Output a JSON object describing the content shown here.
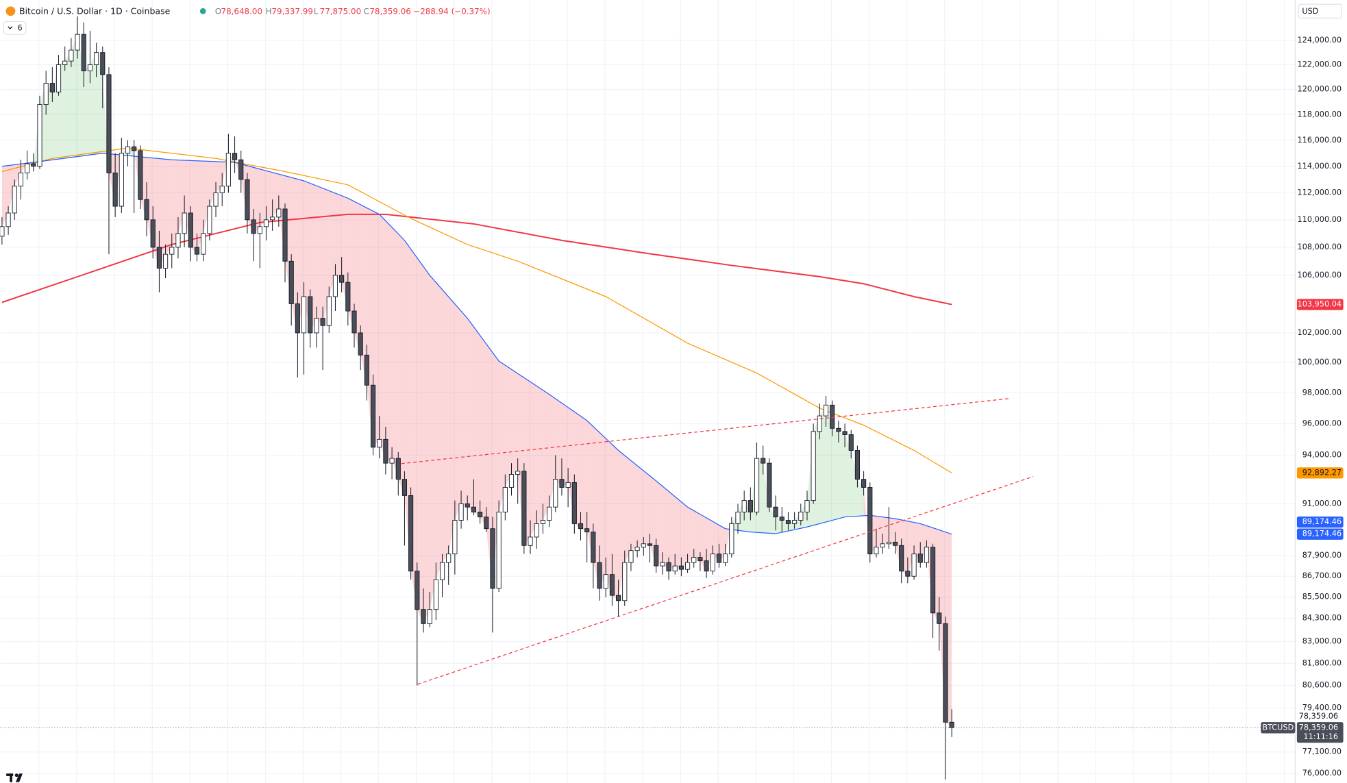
{
  "chart_data": {
    "type": "candlestick",
    "title": "Bitcoin / U.S. Dollar · 1D · Coinbase",
    "ohlc_legend": [
      {
        "key": "O",
        "value": "78,648.00"
      },
      {
        "key": "H",
        "value": "79,337.99"
      },
      {
        "key": "L",
        "value": "77,875.00"
      },
      {
        "key": "C",
        "value": "78,359.06"
      }
    ],
    "change": "−288.94 (−0.37%)",
    "indicators_hidden": 6,
    "currency": "USD",
    "symbol": "BTCUSD",
    "last_price_label": "78,359.06",
    "countdown": "11:11:16",
    "log": true,
    "grid": true,
    "up_color": "#ffffff",
    "down_color": "#4a4e59",
    "xlim": [
      -0.27,
      205.6
    ],
    "ylim": [
      75520,
      127390
    ],
    "yticks": [
      {
        "value": 124000,
        "label": "124,000.00"
      },
      {
        "value": 122000,
        "label": "122,000.00"
      },
      {
        "value": 120000,
        "label": "120,000.00"
      },
      {
        "value": 118000,
        "label": "118,000.00"
      },
      {
        "value": 116000,
        "label": "116,000.00"
      },
      {
        "value": 114000,
        "label": "114,000.00"
      },
      {
        "value": 112000,
        "label": "112,000.00"
      },
      {
        "value": 110000,
        "label": "110,000.00"
      },
      {
        "value": 108000,
        "label": "108,000.00"
      },
      {
        "value": 106000,
        "label": "106,000.00"
      },
      {
        "value": 102000,
        "label": "102,000.00"
      },
      {
        "value": 100000,
        "label": "100,000.00"
      },
      {
        "value": 98000,
        "label": "98,000.00"
      },
      {
        "value": 96000,
        "label": "96,000.00"
      },
      {
        "value": 94000,
        "label": "94,000.00"
      },
      {
        "value": 91000,
        "label": "91,000.00"
      },
      {
        "value": 87900,
        "label": "87,900.00"
      },
      {
        "value": 86700,
        "label": "86,700.00"
      },
      {
        "value": 85500,
        "label": "85,500.00"
      },
      {
        "value": 84300,
        "label": "84,300.00"
      },
      {
        "value": 83000,
        "label": "83,000.00"
      },
      {
        "value": 81800,
        "label": "81,800.00"
      },
      {
        "value": 80600,
        "label": "80,600.00"
      },
      {
        "value": 79400,
        "label": "79,400.00"
      },
      {
        "value": 77100,
        "label": "77,100.00"
      },
      {
        "value": 76000,
        "label": "76,000.00"
      }
    ],
    "candles": [
      [
        108800,
        110200,
        108200,
        109500
      ],
      [
        109500,
        111000,
        108900,
        110500
      ],
      [
        110500,
        113000,
        110000,
        112500
      ],
      [
        112500,
        114500,
        111500,
        113500
      ],
      [
        113500,
        115200,
        113000,
        114200
      ],
      [
        114200,
        115000,
        113600,
        114000
      ],
      [
        114000,
        119500,
        113800,
        118800
      ],
      [
        118800,
        121500,
        118000,
        120500
      ],
      [
        120500,
        121800,
        119000,
        119800
      ],
      [
        119800,
        122800,
        119500,
        122000
      ],
      [
        122000,
        123500,
        121500,
        122300
      ],
      [
        122300,
        124200,
        121800,
        123200
      ],
      [
        123200,
        126000,
        122500,
        124500
      ],
      [
        124500,
        125500,
        120200,
        121500
      ],
      [
        121500,
        124800,
        120500,
        122000
      ],
      [
        122000,
        123800,
        121000,
        123000
      ],
      [
        123000,
        123500,
        118500,
        121200
      ],
      [
        121200,
        121800,
        107500,
        113500
      ],
      [
        113500,
        115000,
        110200,
        111000
      ],
      [
        111000,
        116200,
        110500,
        115000
      ],
      [
        115000,
        116000,
        114000,
        115500
      ],
      [
        115500,
        116000,
        110500,
        115200
      ],
      [
        115200,
        115600,
        110800,
        111500
      ],
      [
        111500,
        112800,
        108800,
        110000
      ],
      [
        110000,
        111000,
        107200,
        108000
      ],
      [
        108000,
        109200,
        104800,
        106500
      ],
      [
        106500,
        108200,
        105800,
        107500
      ],
      [
        107500,
        109000,
        106500,
        108000
      ],
      [
        108000,
        110200,
        107200,
        109000
      ],
      [
        109000,
        111800,
        108000,
        110500
      ],
      [
        110500,
        111000,
        107000,
        108000
      ],
      [
        108000,
        109000,
        107000,
        107500
      ],
      [
        107500,
        110000,
        107000,
        109000
      ],
      [
        109000,
        111500,
        108500,
        111000
      ],
      [
        111000,
        112800,
        110200,
        112000
      ],
      [
        112000,
        113500,
        111000,
        112500
      ],
      [
        112500,
        116500,
        112000,
        115000
      ],
      [
        115000,
        116300,
        113500,
        114500
      ],
      [
        114500,
        115200,
        112000,
        113000
      ],
      [
        113000,
        113500,
        109000,
        110000
      ],
      [
        110000,
        110800,
        107000,
        109000
      ],
      [
        109000,
        110500,
        106500,
        109500
      ],
      [
        109500,
        111000,
        108500,
        110000
      ],
      [
        110000,
        111500,
        109200,
        110200
      ],
      [
        110200,
        111800,
        109500,
        110800
      ],
      [
        110800,
        111200,
        105500,
        107000
      ],
      [
        107000,
        107500,
        102500,
        104000
      ],
      [
        104000,
        104800,
        99000,
        102000
      ],
      [
        102000,
        105500,
        99200,
        104500
      ],
      [
        104500,
        105000,
        101000,
        102000
      ],
      [
        102000,
        103800,
        101000,
        103000
      ],
      [
        103000,
        103800,
        99500,
        102500
      ],
      [
        102500,
        105200,
        102000,
        104500
      ],
      [
        104500,
        106800,
        103500,
        106000
      ],
      [
        106000,
        107300,
        104800,
        105500
      ],
      [
        105500,
        106200,
        102500,
        103500
      ],
      [
        103500,
        104000,
        101000,
        102000
      ],
      [
        102000,
        102500,
        99500,
        100500
      ],
      [
        100500,
        101200,
        97500,
        98500
      ],
      [
        98500,
        99200,
        94000,
        94500
      ],
      [
        94500,
        96500,
        93800,
        95000
      ],
      [
        95000,
        95800,
        92800,
        93500
      ],
      [
        93500,
        94500,
        92500,
        93800
      ],
      [
        93800,
        94200,
        91500,
        92500
      ],
      [
        92500,
        93000,
        88500,
        91500
      ],
      [
        91500,
        92000,
        86500,
        87000
      ],
      [
        87000,
        87500,
        80600,
        84800
      ],
      [
        84800,
        86000,
        83500,
        84000
      ],
      [
        84000,
        85800,
        83800,
        84800
      ],
      [
        84800,
        87500,
        84200,
        86500
      ],
      [
        86500,
        88000,
        85500,
        87500
      ],
      [
        87500,
        88500,
        86200,
        88000
      ],
      [
        88000,
        91200,
        86800,
        90000
      ],
      [
        90000,
        91800,
        89500,
        91000
      ],
      [
        91000,
        91500,
        90000,
        90800
      ],
      [
        90800,
        92500,
        90300,
        90500
      ],
      [
        90500,
        91200,
        89800,
        90200
      ],
      [
        90200,
        90800,
        89300,
        89500
      ],
      [
        89500,
        90200,
        83500,
        86000
      ],
      [
        86000,
        91200,
        85800,
        90500
      ],
      [
        90500,
        92800,
        90000,
        92000
      ],
      [
        92000,
        93500,
        91500,
        92800
      ],
      [
        92800,
        93800,
        91000,
        93000
      ],
      [
        93000,
        93500,
        88000,
        88500
      ],
      [
        88500,
        90000,
        88000,
        89000
      ],
      [
        89000,
        90600,
        88300,
        89800
      ],
      [
        89800,
        91000,
        89200,
        90000
      ],
      [
        90000,
        91500,
        89600,
        90800
      ],
      [
        90800,
        94000,
        90500,
        92500
      ],
      [
        92500,
        93800,
        91500,
        92000
      ],
      [
        92000,
        93200,
        90800,
        92300
      ],
      [
        92300,
        92800,
        89200,
        89800
      ],
      [
        89800,
        90500,
        88800,
        89500
      ],
      [
        89500,
        90500,
        87500,
        89300
      ],
      [
        89300,
        89800,
        86000,
        87500
      ],
      [
        87500,
        88500,
        85300,
        86000
      ],
      [
        86000,
        87800,
        85500,
        86800
      ],
      [
        86800,
        88000,
        85000,
        85600
      ],
      [
        85600,
        86500,
        84400,
        85300
      ],
      [
        85300,
        88200,
        85000,
        87500
      ],
      [
        87500,
        88600,
        87000,
        88200
      ],
      [
        88200,
        88800,
        87800,
        88400
      ],
      [
        88400,
        89000,
        87900,
        88600
      ],
      [
        88600,
        89200,
        87500,
        88500
      ],
      [
        88500,
        88900,
        86900,
        87300
      ],
      [
        87300,
        88100,
        86800,
        87500
      ],
      [
        87500,
        87800,
        86500,
        87000
      ],
      [
        87000,
        88000,
        86800,
        87300
      ],
      [
        87300,
        87800,
        86700,
        87100
      ],
      [
        87100,
        88000,
        86900,
        87500
      ],
      [
        87500,
        88300,
        87200,
        87800
      ],
      [
        87800,
        88100,
        87000,
        87600
      ],
      [
        87600,
        88300,
        86600,
        87000
      ],
      [
        87000,
        88500,
        86800,
        88000
      ],
      [
        88000,
        88600,
        87200,
        87500
      ],
      [
        87500,
        88600,
        87300,
        88000
      ],
      [
        88000,
        90200,
        87800,
        89800
      ],
      [
        89800,
        91000,
        89200,
        90500
      ],
      [
        90500,
        91800,
        90000,
        91200
      ],
      [
        91200,
        92000,
        90000,
        90500
      ],
      [
        90500,
        94800,
        90300,
        93800
      ],
      [
        93800,
        94600,
        92800,
        93500
      ],
      [
        93500,
        93800,
        90500,
        90800
      ],
      [
        90800,
        91500,
        89400,
        90200
      ],
      [
        90200,
        90800,
        89300,
        90000
      ],
      [
        90000,
        90500,
        89400,
        89800
      ],
      [
        89800,
        90500,
        89500,
        90000
      ],
      [
        90000,
        91000,
        89700,
        90500
      ],
      [
        90500,
        91800,
        90000,
        91200
      ],
      [
        91200,
        96000,
        91000,
        95500
      ],
      [
        95500,
        97300,
        95000,
        96500
      ],
      [
        96500,
        97800,
        95800,
        97200
      ],
      [
        97200,
        97500,
        95200,
        95700
      ],
      [
        95700,
        96200,
        94800,
        95500
      ],
      [
        95500,
        96000,
        94500,
        95300
      ],
      [
        95300,
        95600,
        93800,
        94300
      ],
      [
        94300,
        94600,
        92000,
        92500
      ],
      [
        92500,
        93000,
        91500,
        92000
      ],
      [
        92000,
        92300,
        87500,
        88000
      ],
      [
        88000,
        89500,
        87800,
        88400
      ],
      [
        88400,
        89200,
        88000,
        88600
      ],
      [
        88600,
        90800,
        88300,
        88700
      ],
      [
        88700,
        89300,
        88000,
        88500
      ],
      [
        88500,
        88900,
        86300,
        87000
      ],
      [
        87000,
        87800,
        86300,
        86700
      ],
      [
        86700,
        88500,
        86500,
        88000
      ],
      [
        88000,
        88700,
        87200,
        87500
      ],
      [
        87500,
        88800,
        87200,
        88400
      ],
      [
        88400,
        88600,
        83200,
        84600
      ],
      [
        84600,
        85500,
        82500,
        84000
      ],
      [
        84000,
        84400,
        75700,
        78650
      ],
      [
        78648,
        79337.99,
        77875,
        78359.06
      ]
    ],
    "series": [
      {
        "color": "#f23645",
        "x": [
          0,
          14,
          27,
          41,
          55,
          61,
          75,
          89,
          102,
          116,
          130,
          137,
          145,
          151
        ],
        "values": [
          104100,
          106200,
          108200,
          109800,
          110400,
          110400,
          109700,
          108500,
          107600,
          106700,
          105900,
          105400,
          104500,
          103950.04
        ],
        "value_label": "103,950.04"
      },
      {
        "color": "#ff9800",
        "x": [
          0,
          8,
          20,
          34,
          45,
          55,
          65,
          74,
          82,
          96,
          109,
          120,
          130,
          137,
          145,
          151
        ],
        "values": [
          113600,
          114600,
          115400,
          114600,
          113600,
          112600,
          110100,
          108200,
          107000,
          104500,
          101300,
          99300,
          97000,
          95900,
          94300,
          92892.27
        ],
        "value_label": "92,892.27"
      },
      {
        "color": "#2962ff",
        "x": [
          0,
          5,
          16,
          27,
          37,
          48,
          55,
          60,
          64,
          68,
          74,
          79,
          87,
          93,
          98,
          104,
          109,
          115,
          119,
          123,
          128,
          134,
          138,
          142,
          146,
          151
        ],
        "values": [
          114000,
          114300,
          115000,
          114500,
          114300,
          112900,
          111600,
          110400,
          108500,
          106000,
          103000,
          100100,
          97900,
          96200,
          94300,
          92400,
          90800,
          89500,
          89300,
          89200,
          89600,
          90200,
          90300,
          90100,
          89800,
          89174.46
        ],
        "value_label": "89,174.46"
      }
    ]
  }
}
